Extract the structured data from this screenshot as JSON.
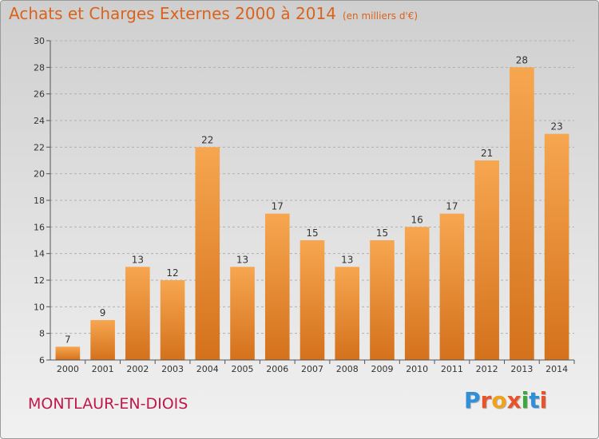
{
  "header": {
    "title": "Achats et Charges Externes 2000 à 2014",
    "subtitle": "(en milliers d'€)"
  },
  "place": "MONTLAUR-EN-DIOIS",
  "logo": {
    "letters": [
      "P",
      "r",
      "o",
      "x",
      "i",
      "t",
      "i"
    ],
    "colors": [
      "#2f8fd8",
      "#e8542a",
      "#f0a21a",
      "#e8542a",
      "#3aa83a",
      "#2f8fd8",
      "#e8542a"
    ]
  },
  "colors": {
    "bar_light": "#f7a650",
    "bar_dark": "#d4711c",
    "grid": "#b0b0b0",
    "axis": "#555555"
  },
  "chart_data": {
    "type": "bar",
    "title": "Achats et Charges Externes 2000 à 2014",
    "subtitle": "(en milliers d'€)",
    "categories": [
      "2000",
      "2001",
      "2002",
      "2003",
      "2004",
      "2005",
      "2006",
      "2007",
      "2008",
      "2009",
      "2010",
      "2011",
      "2012",
      "2013",
      "2014"
    ],
    "values": [
      7,
      9,
      13,
      12,
      22,
      13,
      17,
      15,
      13,
      15,
      16,
      17,
      21,
      28,
      23
    ],
    "xlabel": "",
    "ylabel": "",
    "ylim": [
      6,
      30
    ],
    "yticks": [
      6,
      8,
      10,
      12,
      14,
      16,
      18,
      20,
      22,
      24,
      26,
      28,
      30
    ],
    "grid": true,
    "legend": "none"
  }
}
